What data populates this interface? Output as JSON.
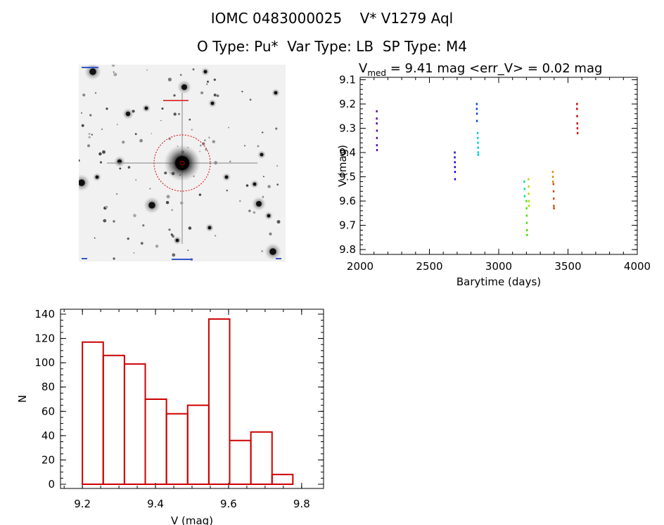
{
  "header": {
    "line1": "IOMC 0483000025    V* V1279 Aql",
    "line2": "O Type: Pu*  Var Type: LB  SP Type: M4"
  },
  "lightcurve": {
    "vmed_label": "V",
    "vmed_sub": "med",
    "vmed_rest": " = 9.41 mag <err_V> = 0.02 mag"
  },
  "colors": {
    "axis": "#000000",
    "histogram": "#cc0000",
    "target_circle": "#dd0000"
  },
  "chart_data": [
    {
      "type": "scatter",
      "xlabel": "Barytime (days)",
      "ylabel": "V (mag)",
      "xlim": [
        2000,
        4000
      ],
      "ylim": [
        9.82,
        9.09
      ],
      "y_inverted": true,
      "x_ticks": [
        2000,
        2500,
        3000,
        3500,
        4000
      ],
      "y_ticks": [
        9.1,
        9.2,
        9.3,
        9.4,
        9.5,
        9.6,
        9.7,
        9.8
      ],
      "series": [
        {
          "color": "#5500aa",
          "points": [
            [
              2120,
              9.23
            ],
            [
              2120,
              9.26
            ],
            [
              2120,
              9.28
            ],
            [
              2121,
              9.31
            ],
            [
              2121,
              9.34
            ],
            [
              2121,
              9.37
            ],
            [
              2122,
              9.39
            ]
          ]
        },
        {
          "color": "#2a00cc",
          "points": [
            [
              2683,
              9.4
            ],
            [
              2683,
              9.42
            ],
            [
              2684,
              9.44
            ],
            [
              2684,
              9.46
            ],
            [
              2685,
              9.48
            ],
            [
              2685,
              9.51
            ]
          ]
        },
        {
          "color": "#0044cc",
          "points": [
            [
              2842,
              9.2
            ],
            [
              2842,
              9.22
            ],
            [
              2843,
              9.24
            ],
            [
              2843,
              9.27
            ]
          ]
        },
        {
          "color": "#00cccc",
          "points": [
            [
              2848,
              9.32
            ],
            [
              2849,
              9.34
            ],
            [
              2850,
              9.36
            ],
            [
              2851,
              9.38
            ],
            [
              2852,
              9.4
            ],
            [
              2853,
              9.41
            ]
          ]
        },
        {
          "color": "#00dd88",
          "points": [
            [
              3185,
              9.52
            ],
            [
              3186,
              9.55
            ],
            [
              3187,
              9.58
            ]
          ]
        },
        {
          "color": "#44dd00",
          "points": [
            [
              3200,
              9.6
            ],
            [
              3201,
              9.63
            ],
            [
              3202,
              9.66
            ],
            [
              3203,
              9.69
            ],
            [
              3204,
              9.72
            ],
            [
              3205,
              9.74
            ]
          ]
        },
        {
          "color": "#aadd00",
          "points": [
            [
              3215,
              9.51
            ],
            [
              3216,
              9.54
            ],
            [
              3217,
              9.57
            ],
            [
              3218,
              9.6
            ],
            [
              3219,
              9.62
            ]
          ]
        },
        {
          "color": "#dd8800",
          "points": [
            [
              3390,
              9.48
            ],
            [
              3391,
              9.5
            ],
            [
              3392,
              9.52
            ]
          ]
        },
        {
          "color": "#cc4400",
          "points": [
            [
              3395,
              9.53
            ],
            [
              3396,
              9.56
            ],
            [
              3397,
              9.59
            ],
            [
              3398,
              9.62
            ],
            [
              3399,
              9.63
            ]
          ]
        },
        {
          "color": "#cc0000",
          "points": [
            [
              3565,
              9.2
            ],
            [
              3565,
              9.22
            ],
            [
              3566,
              9.25
            ],
            [
              3567,
              9.28
            ],
            [
              3568,
              9.3
            ],
            [
              3569,
              9.32
            ]
          ]
        }
      ]
    },
    {
      "type": "bar",
      "xlabel": "V (mag)",
      "ylabel": "N",
      "xlim": [
        9.14,
        9.86
      ],
      "ylim": [
        0,
        140
      ],
      "x_ticks": [
        9.2,
        9.4,
        9.6,
        9.8
      ],
      "x_tick_labels": [
        "9.2",
        "9.4",
        "9.6",
        "9.8"
      ],
      "y_ticks": [
        0,
        20,
        40,
        60,
        80,
        100,
        120,
        140
      ],
      "bin_edges": [
        9.2,
        9.257,
        9.315,
        9.372,
        9.43,
        9.488,
        9.546,
        9.603,
        9.661,
        9.719,
        9.776
      ],
      "values": [
        117,
        106,
        99,
        70,
        58,
        65,
        136,
        36,
        43,
        8
      ]
    }
  ]
}
